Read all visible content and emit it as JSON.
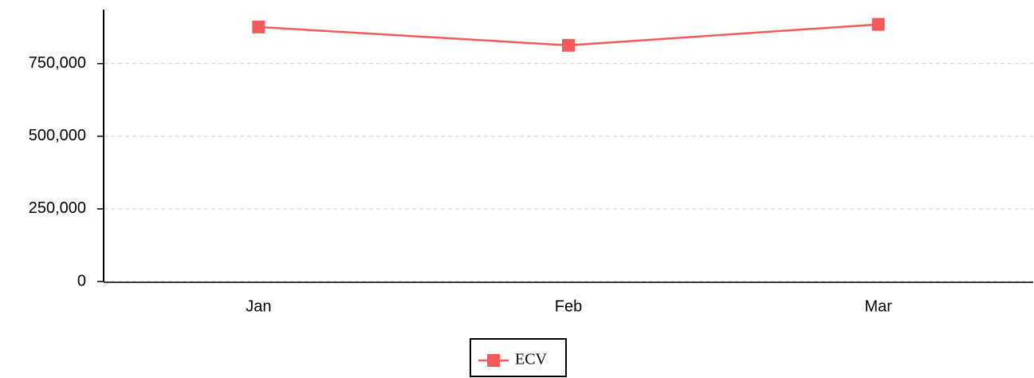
{
  "chart_data": {
    "type": "line",
    "categories": [
      "Jan",
      "Feb",
      "Mar"
    ],
    "series": [
      {
        "name": "ECV",
        "color": "#f55a5a",
        "values": [
          876000,
          813000,
          885000
        ]
      }
    ],
    "ylim": [
      0,
      936000
    ],
    "yticks": [
      0,
      {
        "value": 250000,
        "label": "250,000"
      },
      {
        "value": 500000,
        "label": "500,000"
      },
      {
        "value": 750000,
        "label": "750,000"
      }
    ],
    "grid": true,
    "legend": "bottom"
  }
}
